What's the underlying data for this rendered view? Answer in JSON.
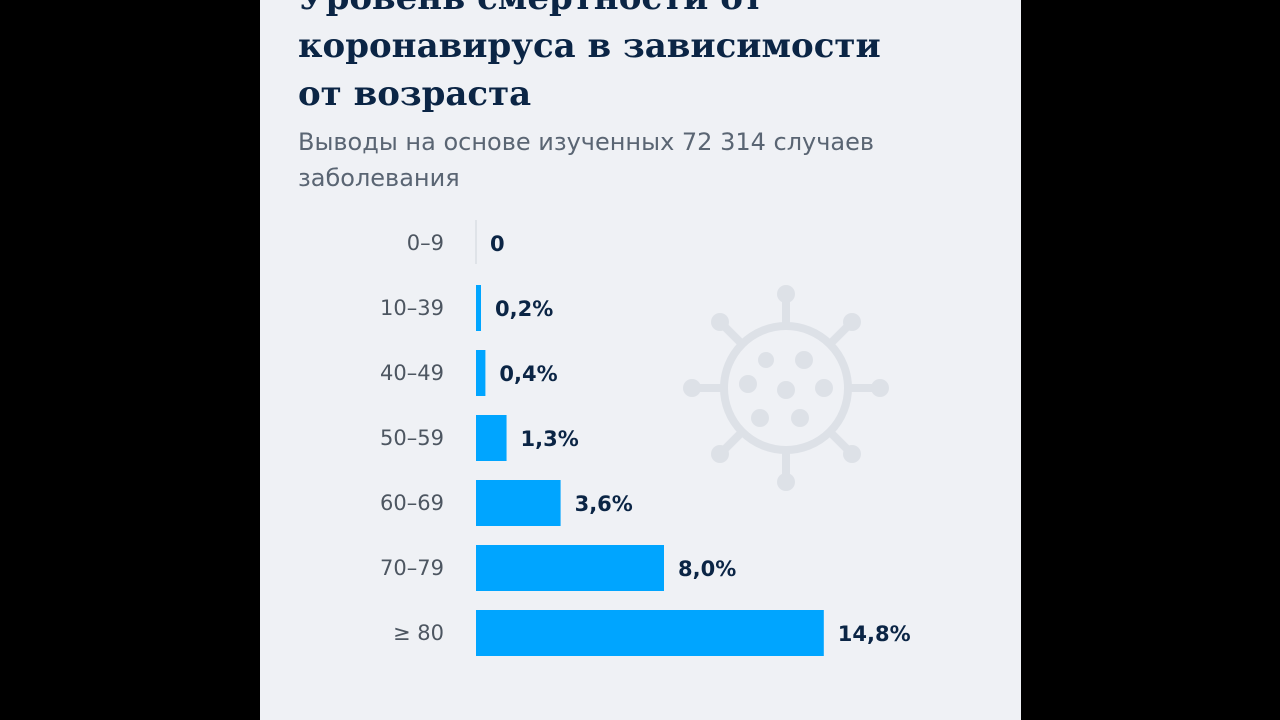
{
  "page": {
    "title_lines": [
      "Уровень смертности от",
      "коронавируса в зависимости",
      "от возраста"
    ],
    "subtitle": "Выводы на основе изученных 72 314 случаев заболевания"
  },
  "chart_data": {
    "type": "bar",
    "orientation": "horizontal",
    "categories": [
      "0–9",
      "10–39",
      "40–49",
      "50–59",
      "60–69",
      "70–79",
      "≥ 80"
    ],
    "values": [
      0,
      0.2,
      0.4,
      1.3,
      3.6,
      8.0,
      14.8
    ],
    "value_labels": [
      "0",
      "0,2%",
      "0,4%",
      "1,3%",
      "3,6%",
      "8,0%",
      "14,8%"
    ],
    "unit": "%",
    "bar_color": "#00a5ff",
    "grid": false,
    "legend": "none"
  },
  "colors": {
    "title": "#0b2545",
    "subtitle": "#5a6573",
    "background": "#eff1f5",
    "bar": "#00a5ff"
  },
  "decoration": {
    "icon": "virus-icon"
  }
}
